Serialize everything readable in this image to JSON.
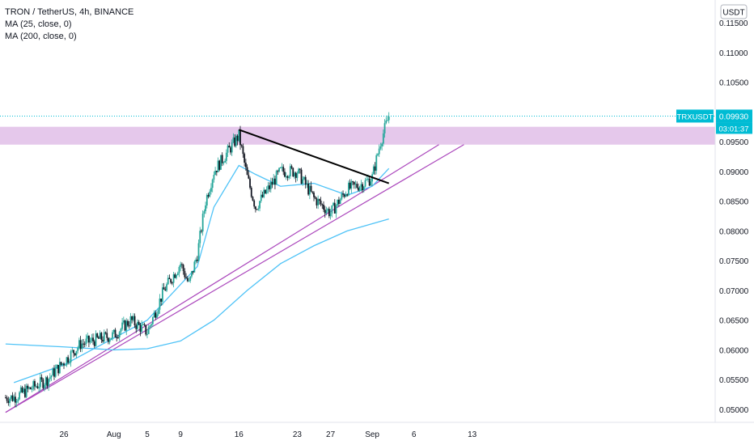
{
  "legend": {
    "symbol_line": "TRON / TetherUS, 4h, BINANCE",
    "ma25": "MA (25, close, 0)",
    "ma200": "MA (200, close, 0)"
  },
  "currency_button": "USDT",
  "current_price": {
    "ticker": "TRXUSDT",
    "price": "0.09930",
    "countdown": "03:01:37"
  },
  "colors": {
    "up": "#26a69a",
    "down": "#131722",
    "ma": "#4fc3f7",
    "zone": "#e1bee7",
    "trendline": "#ab47bc",
    "accent": "#00bcd4"
  },
  "chart_data": {
    "type": "candlestick",
    "symbol": "TRXUSDT",
    "interval": "4h",
    "exchange": "BINANCE",
    "y_axis": {
      "ticks": [
        "0.11500",
        "0.11000",
        "0.10500",
        "0.10000",
        "0.09500",
        "0.09000",
        "0.08500",
        "0.08000",
        "0.07500",
        "0.07000",
        "0.06500",
        "0.06000",
        "0.05500",
        "0.05000"
      ],
      "range": [
        0.0495,
        0.1165
      ]
    },
    "x_axis": {
      "ticks": [
        "26",
        "Aug",
        "5",
        "9",
        "16",
        "23",
        "27",
        "Sep",
        "6",
        "13"
      ]
    },
    "price_trend": [
      {
        "t": "Jul 20",
        "p": 0.052
      },
      {
        "t": "Jul 24",
        "p": 0.055
      },
      {
        "t": "Jul 26",
        "p": 0.058
      },
      {
        "t": "Jul 28",
        "p": 0.061
      },
      {
        "t": "Aug 1",
        "p": 0.0625
      },
      {
        "t": "Aug 3",
        "p": 0.065
      },
      {
        "t": "Aug 5",
        "p": 0.063
      },
      {
        "t": "Aug 7",
        "p": 0.07
      },
      {
        "t": "Aug 9",
        "p": 0.0745
      },
      {
        "t": "Aug 10",
        "p": 0.071
      },
      {
        "t": "Aug 11",
        "p": 0.076
      },
      {
        "t": "Aug 12",
        "p": 0.085
      },
      {
        "t": "Aug 13",
        "p": 0.09
      },
      {
        "t": "Aug 14",
        "p": 0.092
      },
      {
        "t": "Aug 16",
        "p": 0.096
      },
      {
        "t": "Aug 17",
        "p": 0.089
      },
      {
        "t": "Aug 18",
        "p": 0.084
      },
      {
        "t": "Aug 20",
        "p": 0.088
      },
      {
        "t": "Aug 21",
        "p": 0.09
      },
      {
        "t": "Aug 23",
        "p": 0.09
      },
      {
        "t": "Aug 25",
        "p": 0.0855
      },
      {
        "t": "Aug 27",
        "p": 0.083
      },
      {
        "t": "Aug 29",
        "p": 0.087
      },
      {
        "t": "Aug 31",
        "p": 0.088
      },
      {
        "t": "Sep 1",
        "p": 0.089
      },
      {
        "t": "Sep 2",
        "p": 0.095
      },
      {
        "t": "Sep 3",
        "p": 0.0993
      }
    ],
    "ma25": [
      {
        "t": "Jul 20",
        "p": 0.0545
      },
      {
        "t": "Jul 26",
        "p": 0.0575
      },
      {
        "t": "Aug 1",
        "p": 0.062
      },
      {
        "t": "Aug 5",
        "p": 0.065
      },
      {
        "t": "Aug 9",
        "p": 0.071
      },
      {
        "t": "Aug 11",
        "p": 0.074
      },
      {
        "t": "Aug 13",
        "p": 0.084
      },
      {
        "t": "Aug 16",
        "p": 0.091
      },
      {
        "t": "Aug 18",
        "p": 0.0895
      },
      {
        "t": "Aug 21",
        "p": 0.0875
      },
      {
        "t": "Aug 25",
        "p": 0.088
      },
      {
        "t": "Aug 29",
        "p": 0.086
      },
      {
        "t": "Sep 1",
        "p": 0.0875
      },
      {
        "t": "Sep 3",
        "p": 0.0905
      }
    ],
    "ma200": [
      {
        "t": "Jul 19",
        "p": 0.061
      },
      {
        "t": "Jul 26",
        "p": 0.0605
      },
      {
        "t": "Aug 1",
        "p": 0.06
      },
      {
        "t": "Aug 5",
        "p": 0.0602
      },
      {
        "t": "Aug 9",
        "p": 0.0615
      },
      {
        "t": "Aug 13",
        "p": 0.065
      },
      {
        "t": "Aug 17",
        "p": 0.07
      },
      {
        "t": "Aug 21",
        "p": 0.0745
      },
      {
        "t": "Aug 25",
        "p": 0.0775
      },
      {
        "t": "Aug 29",
        "p": 0.08
      },
      {
        "t": "Sep 3",
        "p": 0.082
      }
    ],
    "resistance_zone": [
      0.0945,
      0.0975
    ],
    "descending_trendline": [
      {
        "t": "Aug 16",
        "p": 0.097
      },
      {
        "t": "Sep 3",
        "p": 0.088
      }
    ],
    "rising_trendlines": [
      [
        {
          "t": "Jul 19",
          "p": 0.0495
        },
        {
          "t": "Sep 9",
          "p": 0.0945
        }
      ],
      [
        {
          "t": "Jul 19",
          "p": 0.0495
        },
        {
          "t": "Sep 12",
          "p": 0.0945
        }
      ]
    ],
    "grid": false
  }
}
